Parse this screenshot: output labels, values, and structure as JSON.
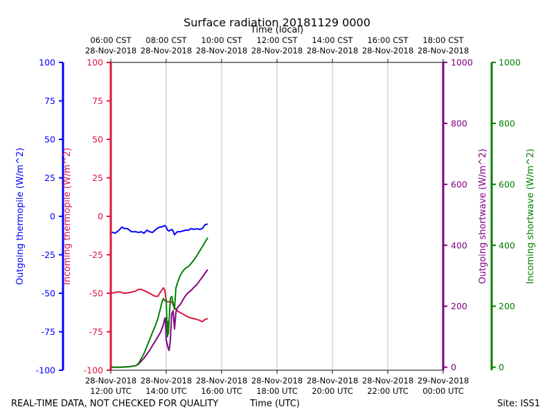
{
  "chart_data": {
    "type": "line",
    "title": "Surface radiation 20181129 0000",
    "top_axis_label": "Time (local)",
    "xlabel": "Time (UTC)",
    "grid": true,
    "x_ticks_utc": [
      {
        "l1": "28-Nov-2018",
        "l2": "12:00 UTC"
      },
      {
        "l1": "28-Nov-2018",
        "l2": "14:00 UTC"
      },
      {
        "l1": "28-Nov-2018",
        "l2": "16:00 UTC"
      },
      {
        "l1": "28-Nov-2018",
        "l2": "18:00 UTC"
      },
      {
        "l1": "28-Nov-2018",
        "l2": "20:00 UTC"
      },
      {
        "l1": "28-Nov-2018",
        "l2": "22:00 UTC"
      },
      {
        "l1": "29-Nov-2018",
        "l2": "00:00 UTC"
      }
    ],
    "x_ticks_local": [
      {
        "l1": "06:00 CST",
        "l2": "28-Nov-2018"
      },
      {
        "l1": "08:00 CST",
        "l2": "28-Nov-2018"
      },
      {
        "l1": "10:00 CST",
        "l2": "28-Nov-2018"
      },
      {
        "l1": "12:00 CST",
        "l2": "28-Nov-2018"
      },
      {
        "l1": "14:00 CST",
        "l2": "28-Nov-2018"
      },
      {
        "l1": "16:00 CST",
        "l2": "28-Nov-2018"
      },
      {
        "l1": "18:00 CST",
        "l2": "28-Nov-2018"
      }
    ],
    "x_range_hours_utc": [
      12,
      24
    ],
    "axes": [
      {
        "id": "out_thermo",
        "label": "Outgoing thermopile (W/m^2)",
        "color": "#0000ff",
        "ylim": [
          -100,
          100
        ],
        "ticks": [
          -100,
          -75,
          -50,
          -25,
          0,
          25,
          50,
          75,
          100
        ]
      },
      {
        "id": "in_thermo",
        "label": "Incoming thermopile (W/m^2)",
        "color": "#dc143c",
        "ylim": [
          -100,
          100
        ],
        "ticks": [
          -100,
          -75,
          -50,
          -25,
          0,
          25,
          50,
          75,
          100
        ]
      },
      {
        "id": "out_sw",
        "label": "Outgoing shortwave (W/m^2)",
        "color": "#800080",
        "ylim": [
          -10,
          1000
        ],
        "ticks": [
          0,
          200,
          400,
          600,
          800,
          1000
        ]
      },
      {
        "id": "in_sw",
        "label": "Incoming shortwave (W/m^2)",
        "color": "#008000",
        "ylim": [
          -10,
          1000
        ],
        "ticks": [
          0,
          200,
          400,
          600,
          800,
          1000
        ]
      }
    ],
    "series": [
      {
        "axis": "out_thermo",
        "color": "#0000ff",
        "x": [
          12.0,
          12.15,
          12.3,
          12.4,
          12.5,
          12.6,
          12.75,
          12.9,
          13.0,
          13.1,
          13.2,
          13.3,
          13.4,
          13.5,
          13.6,
          13.7,
          13.8,
          13.9,
          13.95,
          14.0,
          14.05,
          14.1,
          14.2,
          14.25,
          14.3,
          14.4,
          14.5,
          14.6,
          14.7,
          14.8,
          14.9,
          15.0,
          15.1,
          15.2,
          15.3,
          15.4,
          15.5
        ],
        "y": [
          -10,
          -11,
          -9,
          -7,
          -8,
          -8,
          -10,
          -10,
          -10.5,
          -10,
          -11,
          -9,
          -10,
          -10.5,
          -9,
          -7.5,
          -7,
          -6.5,
          -6,
          -7,
          -9,
          -9.5,
          -8.5,
          -9.5,
          -12,
          -10,
          -10,
          -9.5,
          -9,
          -9,
          -8,
          -8.5,
          -8,
          -8.5,
          -8,
          -5.5,
          -5
        ]
      },
      {
        "axis": "in_thermo",
        "color": "#dc143c",
        "x": [
          12.0,
          12.3,
          12.5,
          12.7,
          12.9,
          13.0,
          13.1,
          13.3,
          13.5,
          13.6,
          13.7,
          13.8,
          13.9,
          13.95,
          14.0,
          14.05,
          14.2,
          14.3,
          14.4,
          14.5,
          14.6,
          14.7,
          14.8,
          14.9,
          15.0,
          15.1,
          15.2,
          15.3,
          15.4,
          15.5
        ],
        "y": [
          -50,
          -49,
          -50,
          -49.5,
          -48.5,
          -47.5,
          -47.5,
          -49,
          -51,
          -52,
          -52,
          -49,
          -46.5,
          -48,
          -55,
          -55.5,
          -55.5,
          -59.5,
          -61.5,
          -62.5,
          -63.5,
          -64.5,
          -65.5,
          -66,
          -66.5,
          -67,
          -67.5,
          -68.5,
          -67,
          -66.5
        ]
      },
      {
        "axis": "out_sw",
        "color": "#800080",
        "x": [
          12.0,
          12.4,
          12.7,
          12.9,
          13.0,
          13.2,
          13.4,
          13.6,
          13.8,
          13.9,
          13.95,
          13.97,
          14.0,
          14.05,
          14.08,
          14.1,
          14.12,
          14.15,
          14.2,
          14.25,
          14.3,
          14.35,
          14.4,
          14.5,
          14.6,
          14.7,
          14.8,
          14.9,
          15.0,
          15.1,
          15.2,
          15.3,
          15.4,
          15.5
        ],
        "y": [
          0,
          0,
          2,
          5,
          10,
          30,
          55,
          85,
          115,
          140,
          160,
          162,
          90,
          70,
          60,
          55,
          65,
          90,
          175,
          185,
          125,
          180,
          195,
          205,
          220,
          235,
          245,
          252,
          262,
          270,
          283,
          295,
          308,
          320
        ]
      },
      {
        "axis": "in_sw",
        "color": "#008000",
        "x": [
          12.0,
          12.4,
          12.7,
          12.9,
          13.0,
          13.2,
          13.4,
          13.6,
          13.7,
          13.8,
          13.85,
          13.9,
          13.95,
          14.0,
          14.03,
          14.05,
          14.07,
          14.08,
          14.1,
          14.15,
          14.2,
          14.25,
          14.3,
          14.35,
          14.4,
          14.5,
          14.6,
          14.7,
          14.8,
          14.9,
          15.0,
          15.1,
          15.2,
          15.3,
          15.4,
          15.5
        ],
        "y": [
          0,
          0,
          2,
          5,
          12,
          45,
          90,
          135,
          160,
          195,
          215,
          225,
          218,
          220,
          140,
          100,
          150,
          110,
          145,
          225,
          232,
          210,
          190,
          260,
          275,
          300,
          315,
          325,
          330,
          340,
          352,
          365,
          380,
          395,
          410,
          425
        ]
      }
    ]
  },
  "footer": {
    "left_text": "REAL-TIME DATA, NOT CHECKED FOR QUALITY",
    "center_text": "Time (UTC)",
    "right_text": "Site: ISS1"
  }
}
